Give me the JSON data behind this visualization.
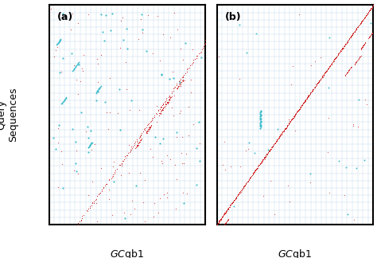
{
  "panel_labels": [
    "(a)",
    "(b)"
  ],
  "ylabel": "Query\nSequences",
  "xlabel_italic": "GC",
  "xlabel_normal": "gb1",
  "background_color": "#ffffff",
  "grid_color": "#c0d8e8",
  "dot_red": "#d02020",
  "dot_cyan": "#30b8c8",
  "figsize": [
    4.74,
    3.24
  ],
  "dpi": 100,
  "n_grid": 30
}
